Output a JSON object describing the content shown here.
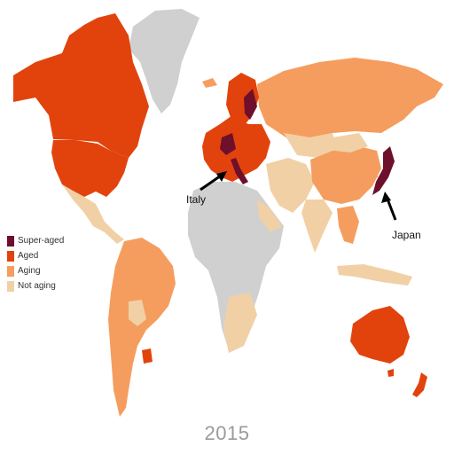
{
  "map": {
    "title_year": "2015",
    "legend": [
      {
        "label": "Super-aged",
        "color": "#6e0f2c"
      },
      {
        "label": "Aged",
        "color": "#e2430d"
      },
      {
        "label": "Aging",
        "color": "#f59d5e"
      },
      {
        "label": "Not aging",
        "color": "#f1d0a6"
      }
    ],
    "no_data_color": "#d0d0d0",
    "annotations": [
      {
        "label": "Italy"
      },
      {
        "label": "Japan"
      }
    ]
  }
}
